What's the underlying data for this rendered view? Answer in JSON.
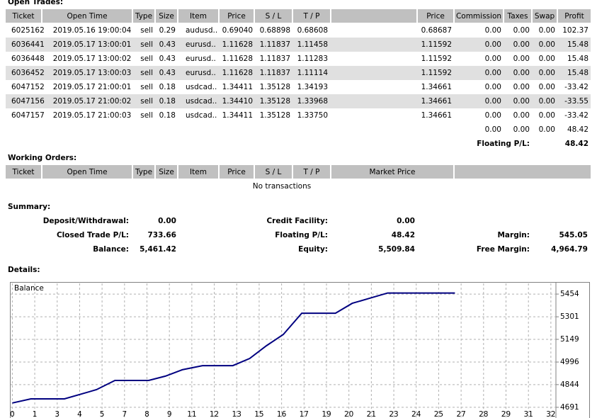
{
  "open_trades": {
    "title": "Open Trades:",
    "columns": [
      "Ticket",
      "Open Time",
      "Type",
      "Size",
      "Item",
      "Price",
      "S / L",
      "T / P",
      "Price",
      "Commission",
      "Taxes",
      "Swap",
      "Profit"
    ],
    "rows": [
      [
        "6025162",
        "2019.05.16 19:00:04",
        "sell",
        "0.29",
        "audusd..",
        "0.69040",
        "0.68898",
        "0.68608",
        "0.68687",
        "0.00",
        "0.00",
        "0.00",
        "102.37"
      ],
      [
        "6036441",
        "2019.05.17 13:00:01",
        "sell",
        "0.43",
        "eurusd..",
        "1.11628",
        "1.11837",
        "1.11458",
        "1.11592",
        "0.00",
        "0.00",
        "0.00",
        "15.48"
      ],
      [
        "6036448",
        "2019.05.17 13:00:02",
        "sell",
        "0.43",
        "eurusd..",
        "1.11628",
        "1.11837",
        "1.11283",
        "1.11592",
        "0.00",
        "0.00",
        "0.00",
        "15.48"
      ],
      [
        "6036452",
        "2019.05.17 13:00:03",
        "sell",
        "0.43",
        "eurusd..",
        "1.11628",
        "1.11837",
        "1.11114",
        "1.11592",
        "0.00",
        "0.00",
        "0.00",
        "15.48"
      ],
      [
        "6047152",
        "2019.05.17 21:00:01",
        "sell",
        "0.18",
        "usdcad..",
        "1.34411",
        "1.35128",
        "1.34193",
        "1.34661",
        "0.00",
        "0.00",
        "0.00",
        "-33.42"
      ],
      [
        "6047156",
        "2019.05.17 21:00:02",
        "sell",
        "0.18",
        "usdcad..",
        "1.34410",
        "1.35128",
        "1.33968",
        "1.34661",
        "0.00",
        "0.00",
        "0.00",
        "-33.55"
      ],
      [
        "6047157",
        "2019.05.17 21:00:03",
        "sell",
        "0.18",
        "usdcad..",
        "1.34411",
        "1.35128",
        "1.33750",
        "1.34661",
        "0.00",
        "0.00",
        "0.00",
        "-33.42"
      ]
    ],
    "totals": [
      "0.00",
      "0.00",
      "0.00",
      "48.42"
    ],
    "floating": {
      "label": "Floating P/L:",
      "value": "48.42"
    }
  },
  "working_orders": {
    "title": "Working Orders:",
    "columns": [
      "Ticket",
      "Open Time",
      "Type",
      "Size",
      "Item",
      "Price",
      "S / L",
      "T / P",
      "Market Price"
    ],
    "empty": "No transactions"
  },
  "summary": {
    "title": "Summary:",
    "items": [
      {
        "label": "Deposit/Withdrawal:",
        "value": "0.00"
      },
      {
        "label": "Credit Facility:",
        "value": "0.00"
      },
      {
        "label": "Closed Trade P/L:",
        "value": "733.66"
      },
      {
        "label": "Floating P/L:",
        "value": "48.42"
      },
      {
        "label": "Margin:",
        "value": "545.05"
      },
      {
        "label": "Balance:",
        "value": "5,461.42"
      },
      {
        "label": "Equity:",
        "value": "5,509.84"
      },
      {
        "label": "Free Margin:",
        "value": "4,964.79"
      }
    ]
  },
  "details": {
    "title": "Details:"
  },
  "chart_data": {
    "type": "line",
    "series": [
      {
        "name": "Balance",
        "color": "#000080",
        "x": [
          0,
          1.1,
          3.1,
          5,
          6.1,
          8.1,
          9.1,
          10.1,
          11.3,
          13.1,
          14.1,
          15.1,
          16.1,
          17.2,
          19.2,
          20.2,
          21.2,
          22.3,
          26.3
        ],
        "values": [
          4720,
          4748,
          4748,
          4810,
          4872,
          4872,
          4901,
          4944,
          4972,
          4972,
          5020,
          5106,
          5182,
          5325,
          5325,
          5392,
          5425,
          5461,
          5461
        ]
      }
    ],
    "xlim": [
      -0.1,
      32.3
    ],
    "ylim": [
      4619,
      5526
    ],
    "xticks": [
      0,
      {
        "value": 1.333,
        "label": "1"
      },
      {
        "value": 2.667,
        "label": "3"
      },
      4,
      {
        "value": 5.333,
        "label": "5"
      },
      {
        "value": 6.667,
        "label": "7"
      },
      8,
      {
        "value": 9.333,
        "label": "9"
      },
      {
        "value": 10.667,
        "label": "11"
      },
      12,
      {
        "value": 13.333,
        "label": "13"
      },
      {
        "value": 14.667,
        "label": "15"
      },
      16,
      {
        "value": 17.333,
        "label": "17"
      },
      {
        "value": 18.667,
        "label": "19"
      },
      20,
      {
        "value": 21.333,
        "label": "21"
      },
      {
        "value": 22.667,
        "label": "23"
      },
      24,
      {
        "value": 25.333,
        "label": "25"
      },
      {
        "value": 26.667,
        "label": "27"
      },
      28,
      {
        "value": 29.333,
        "label": "29"
      },
      {
        "value": 30.667,
        "label": "31"
      },
      32
    ],
    "yticks": [
      4691,
      4844,
      4996,
      5149,
      5301,
      5454
    ],
    "grid": true
  }
}
